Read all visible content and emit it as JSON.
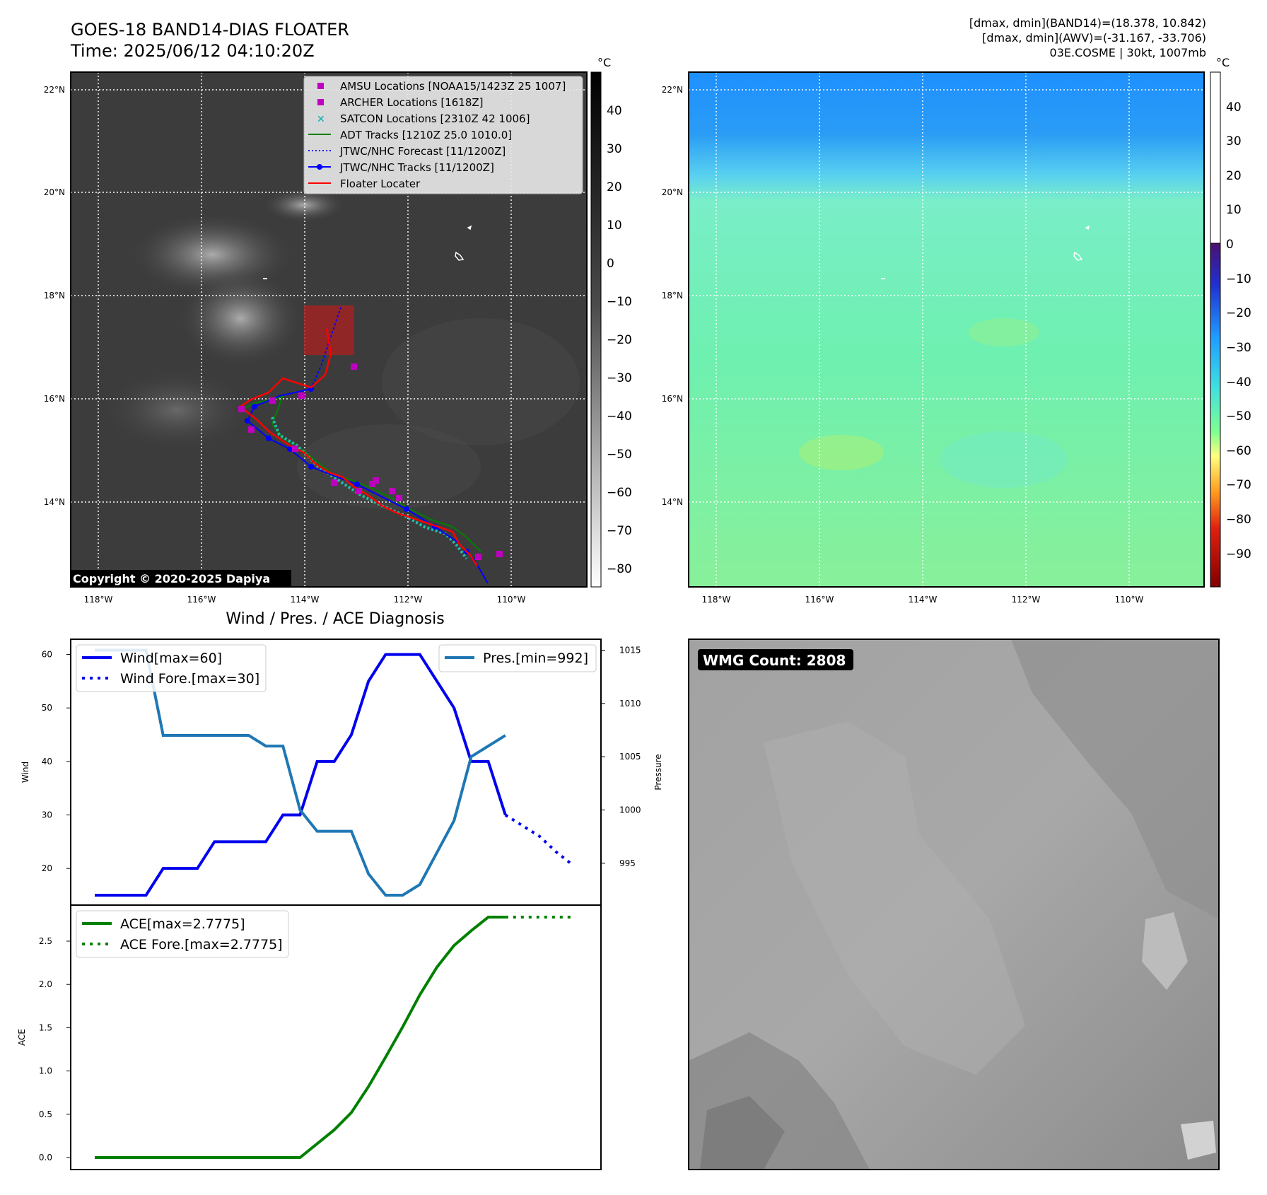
{
  "header": {
    "title_line1": "GOES-18 BAND14-DIAS FLOATER",
    "title_line2": "Time: 2025/06/12 04:10:20Z",
    "info_line1": "[dmax, dmin](BAND14)=(18.378, 10.842)",
    "info_line2": "[dmax, dmin](AWV)=(-31.167, -33.706)",
    "info_line3": "03E.COSME | 30kt, 1007mb"
  },
  "map_axes": {
    "lon_ticks": [
      "118°W",
      "116°W",
      "114°W",
      "112°W",
      "110°W"
    ],
    "lat_ticks": [
      "22°N",
      "20°N",
      "18°N",
      "16°N",
      "14°N"
    ]
  },
  "ir_panel": {
    "copyright": "Copyright © 2020-2025 Dapiya",
    "colorbar_unit": "°C",
    "colorbar_ticks": [
      "40",
      "30",
      "20",
      "10",
      "0",
      "−10",
      "−20",
      "−30",
      "−40",
      "−50",
      "−60",
      "−70",
      "−80"
    ],
    "legend": [
      {
        "label": "AMSU Locations [NOAA15/1423Z 25 1007]",
        "color": "#c000c0",
        "kind": "square"
      },
      {
        "label": "ARCHER Locations [1618Z]",
        "color": "#c000c0",
        "kind": "square"
      },
      {
        "label": "SATCON Locations [2310Z 42 1006]",
        "color": "#00b0b0",
        "kind": "x"
      },
      {
        "label": "ADT Tracks [1210Z 25.0 1010.0]",
        "color": "#008000",
        "kind": "line"
      },
      {
        "label": "JTWC/NHC Forecast [11/1200Z]",
        "color": "#0000ff",
        "kind": "dotted"
      },
      {
        "label": "JTWC/NHC Tracks [11/1200Z]",
        "color": "#0000ff",
        "kind": "line-dot"
      },
      {
        "label": "Floater Locater",
        "color": "#ff0000",
        "kind": "line"
      }
    ]
  },
  "awv_panel": {
    "colorbar_unit": "°C",
    "colorbar_ticks": [
      "40",
      "30",
      "20",
      "10",
      "0",
      "−10",
      "−20",
      "−30",
      "−40",
      "−50",
      "−60",
      "−70",
      "−80",
      "−90"
    ]
  },
  "diagnosis": {
    "title": "Wind / Pres. / ACE Diagnosis",
    "wind_ylabel": "Wind",
    "pressure_ylabel": "Pressure",
    "ace_ylabel": "ACE",
    "wind_legend": "Wind[max=60]",
    "wind_fore_legend": "Wind Fore.[max=30]",
    "pres_legend": "Pres.[min=992]",
    "ace_legend": "ACE[max=2.7775]",
    "ace_fore_legend": "ACE Fore.[max=2.7775]"
  },
  "wmg_panel": {
    "label": "WMG Count: 2808"
  },
  "chart_data": [
    {
      "type": "line",
      "x": [
        0,
        1,
        2,
        3,
        4,
        5,
        6,
        7,
        8,
        9,
        10,
        11,
        12,
        13,
        14,
        15,
        16,
        17,
        18,
        19,
        20,
        21,
        22,
        23,
        24
      ],
      "series": [
        {
          "name": "Wind[max=60]",
          "axis": "left",
          "color": "#0000ee",
          "values": [
            15,
            15,
            15,
            15,
            20,
            20,
            20,
            25,
            25,
            25,
            25,
            30,
            30,
            40,
            40,
            45,
            55,
            60,
            60,
            60,
            55,
            50,
            40,
            40,
            30
          ]
        },
        {
          "name": "Wind Fore.[max=30]",
          "axis": "left",
          "color": "#0000ee",
          "dashed": true,
          "x": [
            24,
            25,
            26,
            27,
            28
          ],
          "values": [
            30,
            28,
            26,
            23,
            20.5
          ]
        },
        {
          "name": "Pres.[min=992]",
          "axis": "right",
          "color": "#1f77b4",
          "values": [
            1015,
            1015,
            1015,
            1015,
            1007,
            1007,
            1007,
            1007,
            1007,
            1007,
            1006,
            1006,
            1000,
            998,
            998,
            998,
            994,
            992,
            992,
            993,
            996,
            999,
            1005,
            1006,
            1007
          ]
        }
      ],
      "ylabel": "Wind",
      "ylim": [
        15,
        61
      ],
      "yticks": [
        20,
        30,
        40,
        50,
        60
      ],
      "y2label": "Pressure",
      "y2lim": [
        992,
        1015.1
      ],
      "y2ticks": [
        995,
        1000,
        1005,
        1010,
        1015
      ]
    },
    {
      "type": "line",
      "x": [
        0,
        1,
        2,
        3,
        4,
        5,
        6,
        7,
        8,
        9,
        10,
        11,
        12,
        13,
        14,
        15,
        16,
        17,
        18,
        19,
        20,
        21,
        22,
        23,
        24
      ],
      "series": [
        {
          "name": "ACE[max=2.7775]",
          "color": "#008000",
          "values": [
            0,
            0,
            0,
            0,
            0,
            0,
            0,
            0,
            0,
            0,
            0,
            0,
            0,
            0.16,
            0.32,
            0.52,
            0.82,
            1.16,
            1.51,
            1.88,
            2.2,
            2.45,
            2.62,
            2.7775,
            2.7775
          ]
        },
        {
          "name": "ACE Fore.[max=2.7775]",
          "color": "#008000",
          "dashed": true,
          "x": [
            24,
            25,
            26,
            27,
            28
          ],
          "values": [
            2.7775,
            2.7775,
            2.7775,
            2.7775,
            2.7775
          ]
        }
      ],
      "ylabel": "ACE",
      "ylim": [
        -0.1,
        2.85
      ],
      "yticks": [
        0.0,
        0.5,
        1.0,
        1.5,
        2.0,
        2.5
      ],
      "ytick_labels": [
        "0.0",
        "0.5",
        "1.0",
        "1.5",
        "2.0",
        "2.5"
      ]
    }
  ]
}
